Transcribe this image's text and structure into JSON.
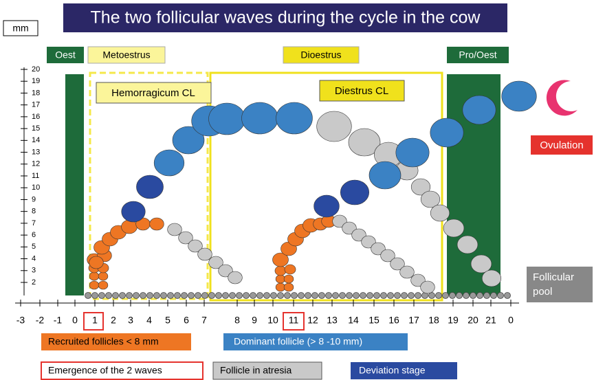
{
  "title": "The two follicular waves during the cycle in the cow",
  "unit": "mm",
  "phases": {
    "oest": "Oest",
    "metoestrus": "Metoestrus",
    "dioestrus": "Dioestrus",
    "pro_oest": "Pro/Oest"
  },
  "cl": {
    "hemorragicum": "Hemorragicum CL",
    "dioestrus": "Diestrus CL"
  },
  "y_ticks": [
    "2",
    "3",
    "4",
    "5",
    "6",
    "7",
    "8",
    "9",
    "10",
    "11",
    "12",
    "13",
    "14",
    "15",
    "16",
    "17",
    "18",
    "19",
    "20"
  ],
  "x_ticks": [
    "-3",
    "-2",
    "-1",
    "0",
    "1",
    "2",
    "3",
    "4",
    "5",
    "6",
    "7",
    "8",
    "9",
    "10",
    "11",
    "12",
    "13",
    "14",
    "15",
    "16",
    "17",
    "18",
    "19",
    "20",
    "21",
    "0"
  ],
  "ovulation": "Ovulation",
  "follicular_pool": [
    "Follicular",
    "pool"
  ],
  "legend": {
    "recruited": "Recruited follicles < 8 mm",
    "dominant": "Dominant follicle (> 8 -10 mm)",
    "emergence": "Emergence of the 2 waves",
    "atresia": "Follicle in atresia",
    "deviation": "Deviation stage"
  }
}
